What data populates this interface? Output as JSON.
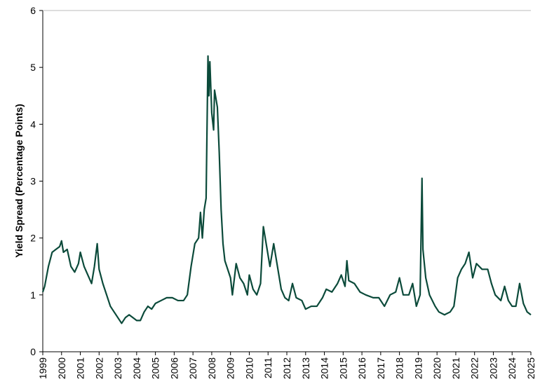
{
  "chart_data": {
    "type": "line",
    "y_label": "Yield Spread (Percentage Points)",
    "x": [
      1999.0,
      1999.1,
      1999.3,
      1999.5,
      1999.7,
      1999.9,
      2000.0,
      2000.1,
      2000.3,
      2000.5,
      2000.7,
      2000.9,
      2001.0,
      2001.2,
      2001.4,
      2001.6,
      2001.75,
      2001.9,
      2002.0,
      2002.2,
      2002.4,
      2002.6,
      2002.8,
      2003.0,
      2003.2,
      2003.4,
      2003.6,
      2003.8,
      2004.0,
      2004.2,
      2004.4,
      2004.6,
      2004.8,
      2005.0,
      2005.3,
      2005.6,
      2005.9,
      2006.2,
      2006.5,
      2006.7,
      2006.9,
      2007.1,
      2007.3,
      2007.4,
      2007.5,
      2007.6,
      2007.7,
      2007.8,
      2007.85,
      2007.9,
      2008.0,
      2008.1,
      2008.15,
      2008.3,
      2008.4,
      2008.5,
      2008.6,
      2008.7,
      2008.9,
      2009.0,
      2009.1,
      2009.3,
      2009.5,
      2009.7,
      2009.9,
      2010.0,
      2010.2,
      2010.4,
      2010.6,
      2010.75,
      2010.9,
      2011.1,
      2011.3,
      2011.5,
      2011.7,
      2011.9,
      2012.1,
      2012.3,
      2012.5,
      2012.8,
      2013.0,
      2013.3,
      2013.6,
      2013.9,
      2014.1,
      2014.4,
      2014.7,
      2014.9,
      2015.1,
      2015.2,
      2015.3,
      2015.6,
      2015.9,
      2016.2,
      2016.6,
      2016.9,
      2017.2,
      2017.5,
      2017.8,
      2018.0,
      2018.2,
      2018.5,
      2018.7,
      2018.9,
      2019.1,
      2019.2,
      2019.25,
      2019.4,
      2019.6,
      2019.9,
      2020.1,
      2020.4,
      2020.7,
      2020.9,
      2021.1,
      2021.3,
      2021.5,
      2021.7,
      2021.9,
      2022.1,
      2022.4,
      2022.7,
      2022.9,
      2023.1,
      2023.4,
      2023.6,
      2023.8,
      2024.0,
      2024.2,
      2024.4,
      2024.6,
      2024.8,
      2025.0
    ],
    "series": [
      {
        "color": "#0b4a3a",
        "values": [
          1.05,
          1.15,
          1.5,
          1.75,
          1.8,
          1.85,
          1.95,
          1.75,
          1.8,
          1.5,
          1.4,
          1.55,
          1.75,
          1.5,
          1.35,
          1.2,
          1.5,
          1.9,
          1.45,
          1.2,
          1.0,
          0.8,
          0.7,
          0.6,
          0.5,
          0.6,
          0.65,
          0.6,
          0.55,
          0.55,
          0.7,
          0.8,
          0.75,
          0.85,
          0.9,
          0.95,
          0.95,
          0.9,
          0.9,
          1.0,
          1.5,
          1.9,
          2.0,
          2.45,
          2.0,
          2.5,
          2.7,
          5.2,
          4.5,
          5.1,
          4.2,
          3.9,
          4.6,
          4.3,
          3.5,
          2.5,
          1.9,
          1.6,
          1.4,
          1.3,
          1.0,
          1.55,
          1.3,
          1.2,
          1.0,
          1.35,
          1.1,
          1.0,
          1.2,
          2.2,
          1.9,
          1.5,
          1.9,
          1.5,
          1.1,
          0.95,
          0.9,
          1.2,
          0.95,
          0.9,
          0.75,
          0.8,
          0.8,
          0.95,
          1.1,
          1.05,
          1.2,
          1.35,
          1.15,
          1.6,
          1.25,
          1.2,
          1.05,
          1.0,
          0.95,
          0.95,
          0.8,
          1.0,
          1.05,
          1.3,
          1.0,
          1.0,
          1.2,
          0.8,
          1.0,
          3.05,
          1.8,
          1.3,
          1.0,
          0.8,
          0.7,
          0.65,
          0.7,
          0.8,
          1.3,
          1.45,
          1.55,
          1.75,
          1.3,
          1.55,
          1.45,
          1.45,
          1.2,
          1.0,
          0.9,
          1.15,
          0.9,
          0.8,
          0.8,
          1.2,
          0.85,
          0.7,
          0.65
        ]
      }
    ],
    "xlim": [
      1999,
      2025
    ],
    "xticks": [
      1999,
      2000,
      2001,
      2002,
      2003,
      2004,
      2005,
      2006,
      2007,
      2008,
      2009,
      2010,
      2011,
      2012,
      2013,
      2014,
      2015,
      2016,
      2017,
      2018,
      2019,
      2020,
      2021,
      2022,
      2023,
      2024,
      2025
    ],
    "ylim": [
      0,
      6
    ],
    "yticks": [
      0,
      1,
      2,
      3,
      4,
      5,
      6
    ]
  }
}
